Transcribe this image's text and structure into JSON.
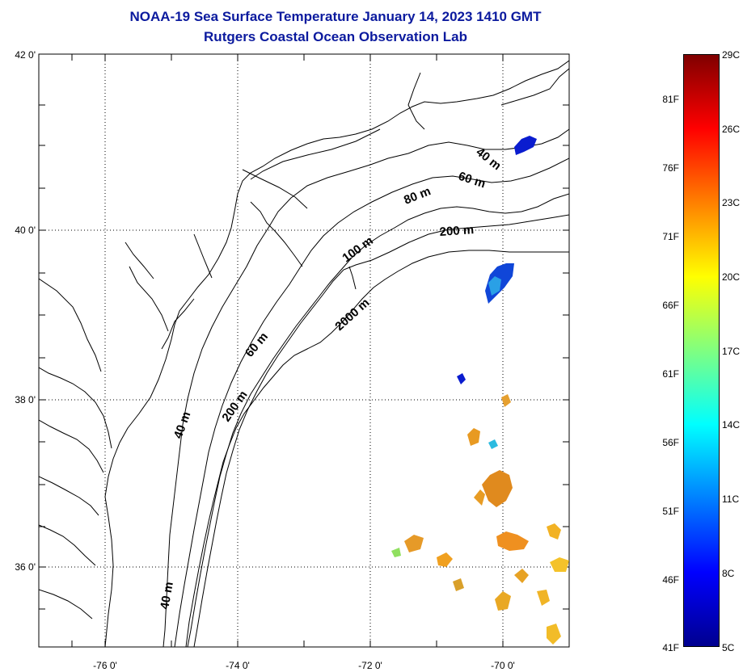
{
  "title": "NOAA-19 Sea Surface Temperature January 14, 2023 1410 GMT",
  "subtitle": "Rutgers Coastal Ocean Observation Lab",
  "axes": {
    "lat_labels": [
      "42 0'",
      "40 0'",
      "38 0'",
      "36 0'"
    ],
    "lon_labels": [
      "-76 0'",
      "-74 0'",
      "-72 0'",
      "-70 0'"
    ],
    "lat_range": [
      35.0,
      42.0
    ],
    "lon_range": [
      -77.0,
      -69.0
    ],
    "grid": "dotted"
  },
  "isobath_labels": [
    "40 m",
    "60 m",
    "80 m",
    "200 m",
    "100 m",
    "2000 m",
    "60 m",
    "200 m",
    "40 m",
    "40 m"
  ],
  "colorbar": {
    "fahrenheit_labels": [
      "81F",
      "76F",
      "71F",
      "66F",
      "61F",
      "56F",
      "51F",
      "46F",
      "41F"
    ],
    "celsius_labels": [
      "29C",
      "26C",
      "23C",
      "20C",
      "17C",
      "14C",
      "11C",
      "8C",
      "5C"
    ],
    "colormap": "jet",
    "range_c": [
      5,
      29
    ],
    "colors": [
      "#00008f",
      "#0000ff",
      "#0080ff",
      "#00ffff",
      "#80ff80",
      "#ffff00",
      "#ff8000",
      "#ff0000",
      "#800000"
    ]
  },
  "colors": {
    "title": "#0b1a9e",
    "coast": "#000000",
    "grid": "#000000"
  }
}
